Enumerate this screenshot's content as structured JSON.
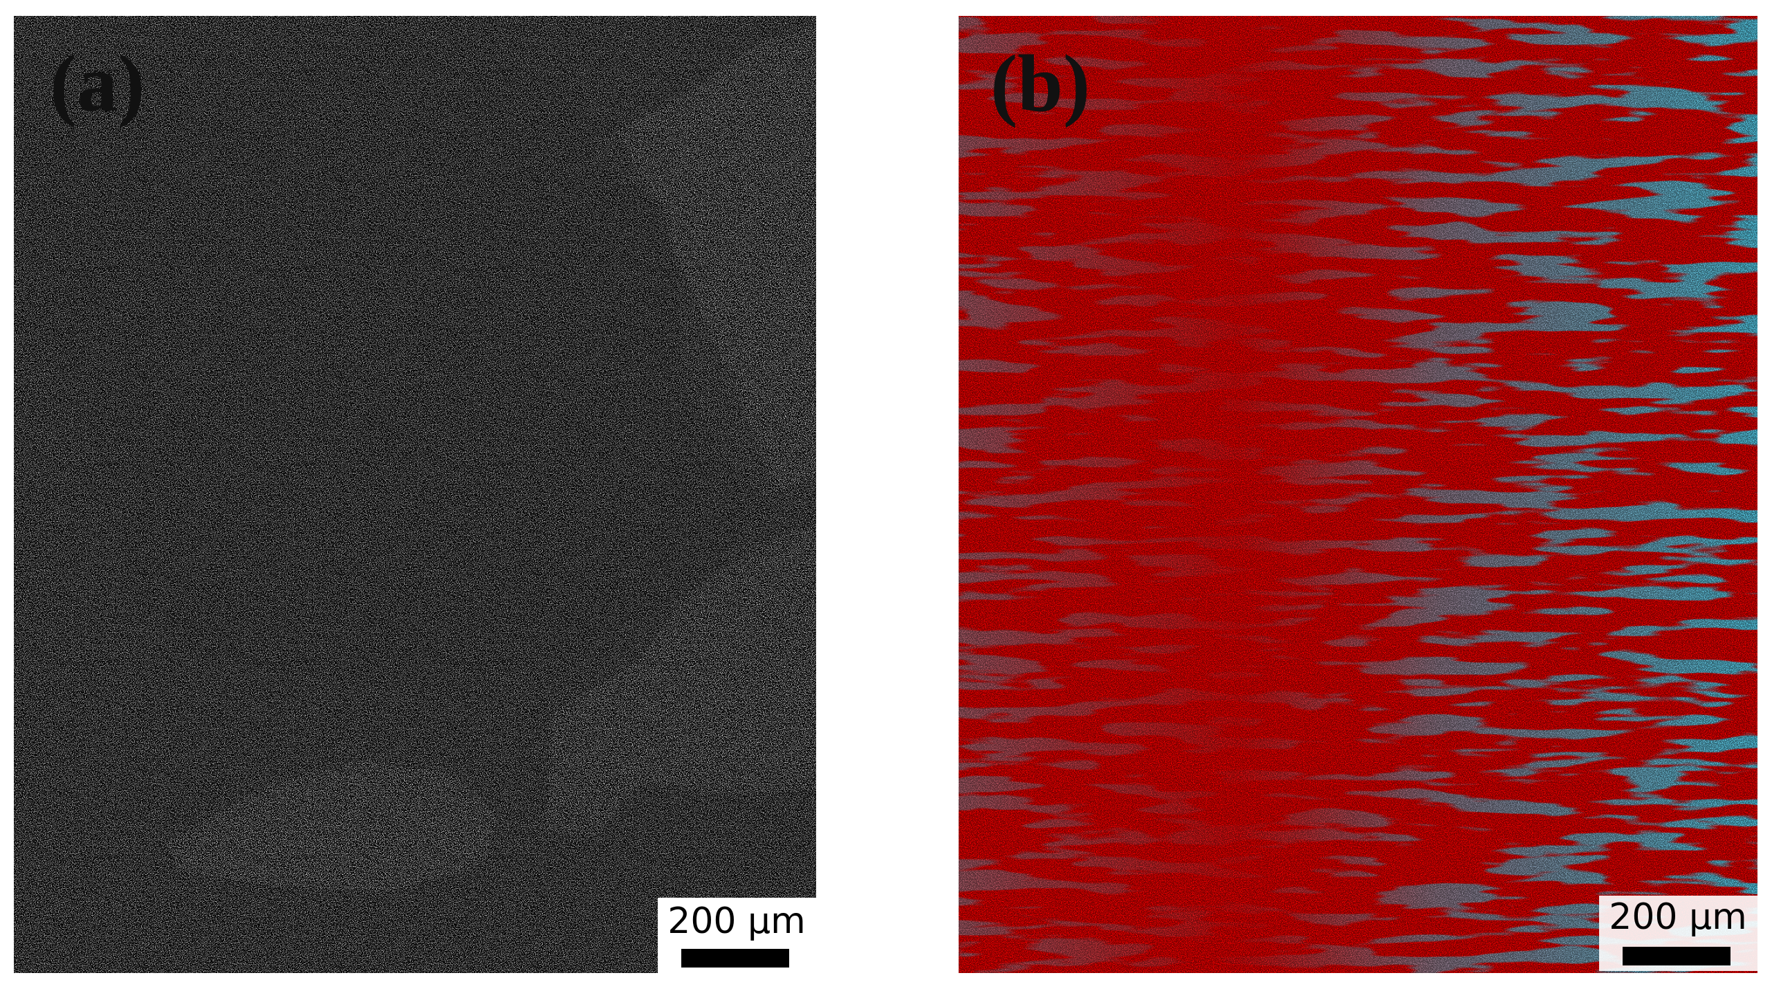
{
  "panels": [
    {
      "label": "(a)",
      "scale_bar": "200 µm"
    },
    {
      "label": "(b)",
      "scale_bar": "200 µm"
    }
  ]
}
